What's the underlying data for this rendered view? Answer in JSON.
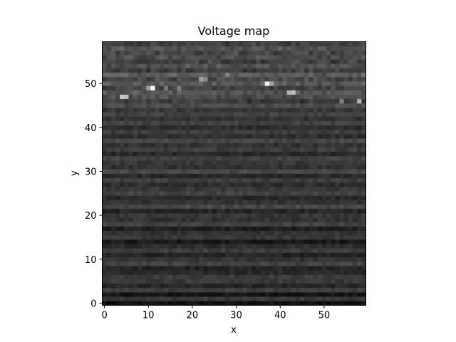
{
  "chart_data": {
    "type": "heatmap",
    "title": "Voltage map",
    "xlabel": "x",
    "ylabel": "y",
    "xlim": [
      -0.5,
      59.5
    ],
    "ylim": [
      -0.5,
      59.5
    ],
    "xticks": [
      0,
      10,
      20,
      30,
      40,
      50
    ],
    "yticks": [
      0,
      10,
      20,
      30,
      40,
      50
    ],
    "xticklabels": [
      "0",
      "10",
      "20",
      "30",
      "40",
      "50"
    ],
    "yticklabels": [
      "0",
      "10",
      "20",
      "30",
      "40",
      "50"
    ],
    "colormap": "gray",
    "grid": false,
    "shape": [
      60,
      60
    ],
    "row_levels": [
      0.06,
      0.22,
      0.08,
      0.24,
      0.15,
      0.22,
      0.24,
      0.16,
      0.14,
      0.26,
      0.2,
      0.14,
      0.24,
      0.18,
      0.1,
      0.22,
      0.2,
      0.12,
      0.26,
      0.2,
      0.22,
      0.14,
      0.28,
      0.2,
      0.16,
      0.26,
      0.22,
      0.18,
      0.24,
      0.16,
      0.28,
      0.2,
      0.22,
      0.26,
      0.16,
      0.24,
      0.2,
      0.28,
      0.18,
      0.24,
      0.17,
      0.26,
      0.2,
      0.26,
      0.22,
      0.3,
      0.24,
      0.3,
      0.34,
      0.26,
      0.34,
      0.28,
      0.36,
      0.24,
      0.32,
      0.26,
      0.3,
      0.28,
      0.32,
      0.26
    ],
    "hotspots": [
      {
        "x": 4,
        "y": 47,
        "value": 0.78
      },
      {
        "x": 5,
        "y": 47,
        "value": 0.74
      },
      {
        "x": 54,
        "y": 46,
        "value": 0.5
      },
      {
        "x": 58,
        "y": 46,
        "value": 0.7
      },
      {
        "x": 10,
        "y": 49,
        "value": 0.62
      },
      {
        "x": 11,
        "y": 49,
        "value": 1.0
      },
      {
        "x": 14,
        "y": 49,
        "value": 0.46
      },
      {
        "x": 17,
        "y": 49,
        "value": 0.5
      },
      {
        "x": 37,
        "y": 50,
        "value": 0.95
      },
      {
        "x": 38,
        "y": 50,
        "value": 0.65
      },
      {
        "x": 42,
        "y": 48,
        "value": 0.7
      },
      {
        "x": 43,
        "y": 48,
        "value": 0.75
      },
      {
        "x": 22,
        "y": 51,
        "value": 0.62
      },
      {
        "x": 23,
        "y": 51,
        "value": 0.55
      },
      {
        "x": 28,
        "y": 52,
        "value": 0.5
      },
      {
        "x": 1,
        "y": 0,
        "value": 0.0
      },
      {
        "x": 2,
        "y": 0,
        "value": 0.02
      }
    ]
  }
}
